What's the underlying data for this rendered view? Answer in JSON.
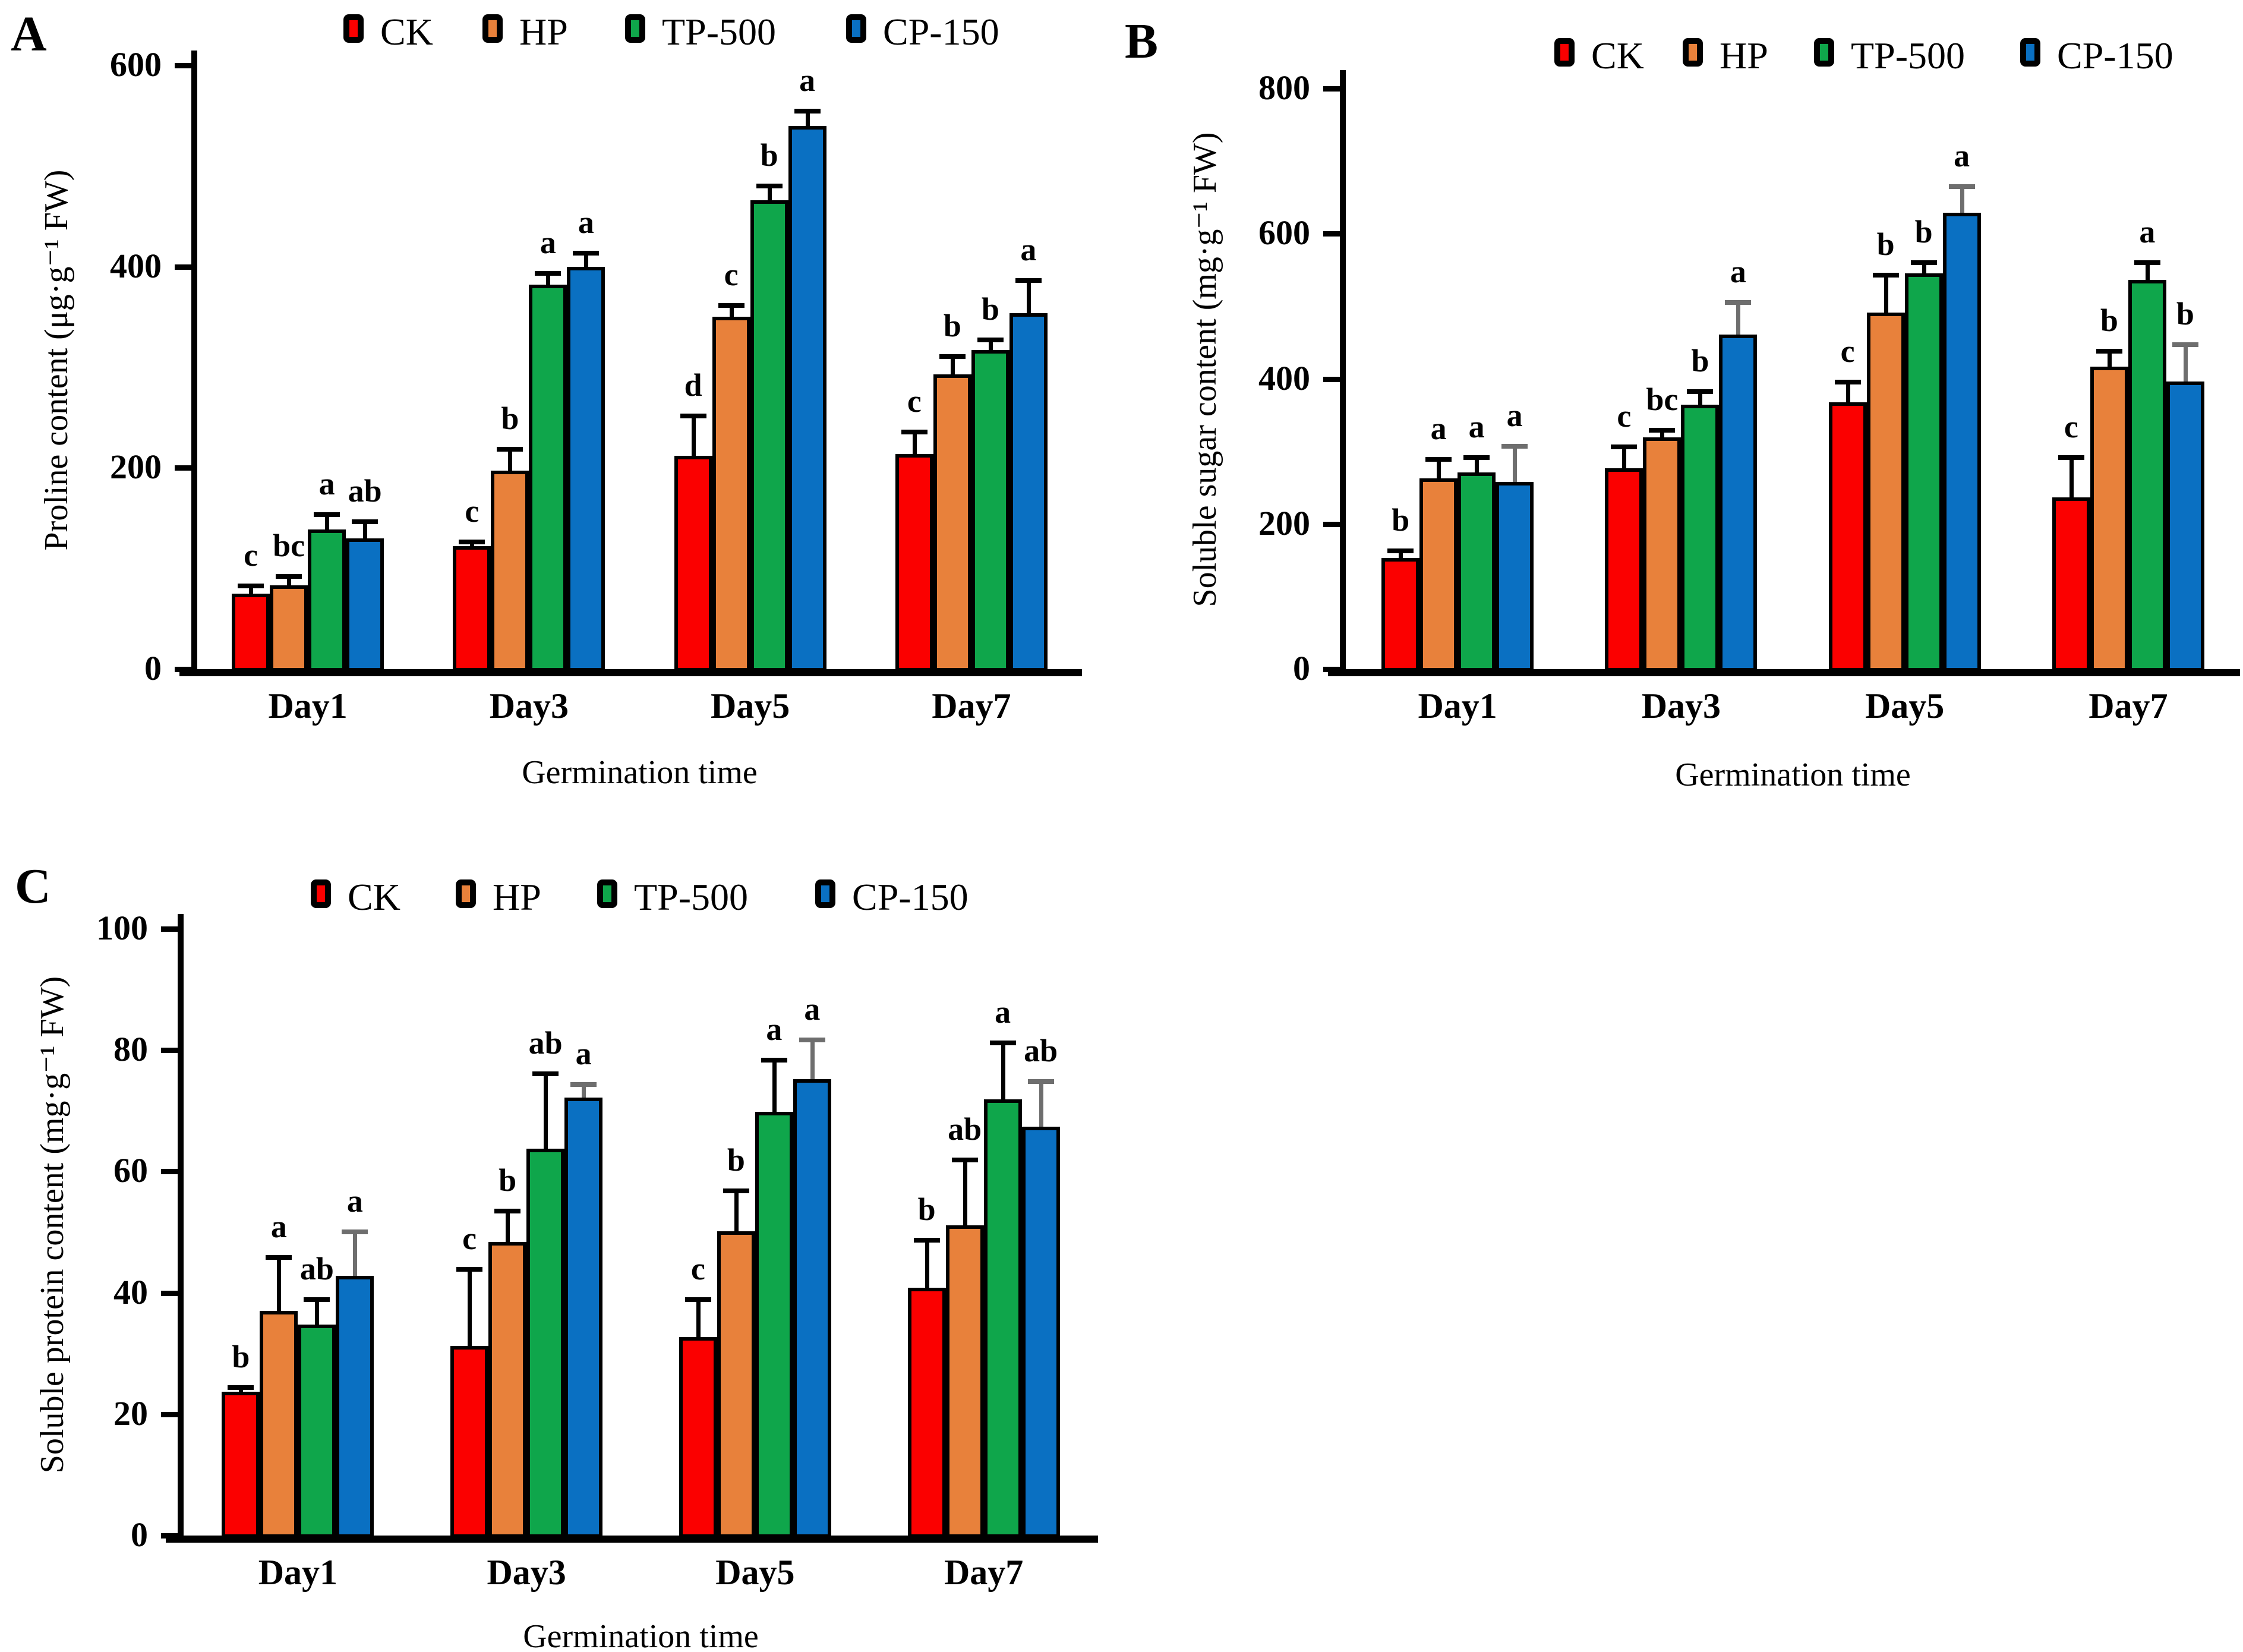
{
  "legend": {
    "labels": [
      "CK",
      "HP",
      "TP-500",
      "CP-150"
    ]
  },
  "colors": {
    "CK": "#fb0000",
    "HP": "#e8813b",
    "TP-500": "#0fa64b",
    "CP-150": "#0a70c2",
    "axis": "#000000",
    "error_bar": "#000000",
    "error_bar_gray": "#6e6e6e"
  },
  "chart_data": [
    {
      "panel_label": "A",
      "type": "bar",
      "ylabel": "Proline content (μg·g⁻¹ FW)",
      "xlabel": "Germination time",
      "ylim": [
        0,
        600
      ],
      "yticks": [
        0,
        200,
        400,
        600
      ],
      "grid": false,
      "legend_position": "top",
      "categories": [
        "Day1",
        "Day3",
        "Day5",
        "Day7"
      ],
      "series": [
        {
          "name": "CK",
          "values": [
            75,
            122,
            212,
            214
          ],
          "errors": [
            8,
            5,
            40,
            22
          ],
          "letters": [
            "c",
            "c",
            "d",
            "c"
          ]
        },
        {
          "name": "HP",
          "values": [
            83,
            197,
            350,
            293
          ],
          "errors": [
            10,
            22,
            12,
            18
          ],
          "letters": [
            "bc",
            "b",
            "c",
            "b"
          ]
        },
        {
          "name": "TP-500",
          "values": [
            139,
            382,
            466,
            317
          ],
          "errors": [
            15,
            12,
            15,
            11
          ],
          "letters": [
            "a",
            "a",
            "b",
            "b"
          ]
        },
        {
          "name": "CP-150",
          "values": [
            130,
            400,
            540,
            354
          ],
          "errors": [
            17,
            14,
            15,
            33
          ],
          "letters": [
            "ab",
            "a",
            "a",
            "a"
          ]
        }
      ]
    },
    {
      "panel_label": "B",
      "type": "bar",
      "ylabel": "Soluble sugar content (mg·g⁻¹ FW)",
      "xlabel": "Germination time",
      "ylim": [
        0,
        800
      ],
      "yticks": [
        0,
        200,
        400,
        600,
        800
      ],
      "grid": false,
      "legend_position": "top",
      "categories": [
        "Day1",
        "Day3",
        "Day5",
        "Day7"
      ],
      "series": [
        {
          "name": "CK",
          "values": [
            153,
            277,
            368,
            237
          ],
          "errors": [
            11,
            30,
            28,
            55
          ],
          "letters": [
            "b",
            "c",
            "c",
            "c"
          ]
        },
        {
          "name": "HP",
          "values": [
            263,
            319,
            491,
            417
          ],
          "errors": [
            27,
            11,
            53,
            22
          ],
          "letters": [
            "a",
            "bc",
            "b",
            "b"
          ]
        },
        {
          "name": "TP-500",
          "values": [
            271,
            364,
            545,
            536
          ],
          "errors": [
            21,
            19,
            16,
            25
          ],
          "letters": [
            "a",
            "b",
            "b",
            "a"
          ]
        },
        {
          "name": "CP-150",
          "values": [
            258,
            461,
            629,
            396
          ],
          "errors": [
            50,
            45,
            37,
            52
          ],
          "letters": [
            "a",
            "a",
            "a",
            "b"
          ],
          "gray_error": true
        }
      ]
    },
    {
      "panel_label": "C",
      "type": "bar",
      "ylabel": "Soluble protein content (mg·g⁻¹ FW)",
      "xlabel": "Germination time",
      "ylim": [
        0,
        100
      ],
      "yticks": [
        0,
        20,
        40,
        60,
        80,
        100
      ],
      "grid": false,
      "legend_position": "top",
      "categories": [
        "Day1",
        "Day3",
        "Day5",
        "Day7"
      ],
      "series": [
        {
          "name": "CK",
          "values": [
            23.7,
            31.2,
            32.7,
            40.8
          ],
          "errors": [
            0.8,
            12.8,
            6.3,
            8.0
          ],
          "letters": [
            "b",
            "c",
            "c",
            "b"
          ]
        },
        {
          "name": "HP",
          "values": [
            37.0,
            48.4,
            50.1,
            51.1
          ],
          "errors": [
            8.9,
            5.2,
            6.8,
            10.9
          ],
          "letters": [
            "a",
            "b",
            "b",
            "ab"
          ]
        },
        {
          "name": "TP-500",
          "values": [
            34.8,
            63.8,
            69.8,
            71.9
          ],
          "errors": [
            4.2,
            12.4,
            8.7,
            9.4
          ],
          "letters": [
            "ab",
            "ab",
            "a",
            "a"
          ]
        },
        {
          "name": "CP-150",
          "values": [
            42.8,
            72.2,
            75.2,
            67.4
          ],
          "errors": [
            7.3,
            2.2,
            6.6,
            7.5
          ],
          "letters": [
            "a",
            "a",
            "a",
            "ab"
          ],
          "gray_error": true
        }
      ]
    }
  ]
}
